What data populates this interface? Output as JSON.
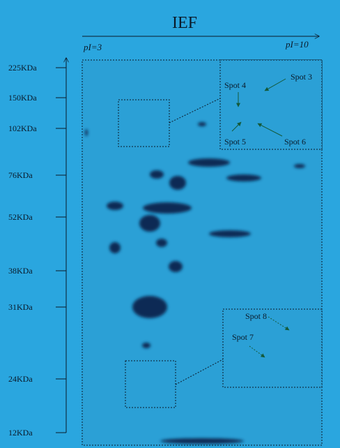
{
  "header": {
    "title": "IEF",
    "ph_low": "pI=3",
    "ph_high": "pI=10"
  },
  "mw_labels": [
    "225KDa",
    "150KDa",
    "102KDa",
    "76KDa",
    "52KDa",
    "38KDa",
    "31KDa",
    "24KDa",
    "12KDa"
  ],
  "spots": [
    "Spot 3",
    "Spot 4",
    "Spot 5",
    "Spot 6",
    "Spot 7",
    "Spot 8"
  ]
}
